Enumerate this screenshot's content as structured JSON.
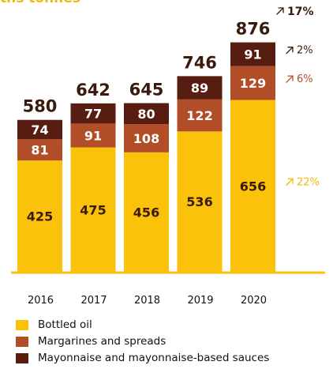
{
  "unit_label": "ths tonnes",
  "colors": {
    "bottled_oil": "#fac20b",
    "margarines": "#b24e27",
    "mayonnaise": "#571d10",
    "axis": "#fac20b",
    "total_text": "#3a1a0c",
    "growth_dark": "#3a1a0c",
    "growth_mid": "#b24e27",
    "growth_light": "#f2b705"
  },
  "chart_data": {
    "type": "bar",
    "stacked": true,
    "categories": [
      "2016",
      "2017",
      "2018",
      "2019",
      "2020"
    ],
    "series": [
      {
        "name": "Bottled oil",
        "values": [
          425,
          475,
          456,
          536,
          656
        ]
      },
      {
        "name": "Margarines and spreads",
        "values": [
          81,
          91,
          108,
          122,
          129
        ]
      },
      {
        "name": "Mayonnaise and mayonnaise-based sauces",
        "values": [
          74,
          77,
          80,
          89,
          91
        ]
      }
    ],
    "totals": [
      580,
      642,
      645,
      746,
      876
    ],
    "growth": {
      "total": "17%",
      "series": [
        "22%",
        "6%",
        "2%"
      ]
    },
    "legend_position": "bottom-left"
  }
}
